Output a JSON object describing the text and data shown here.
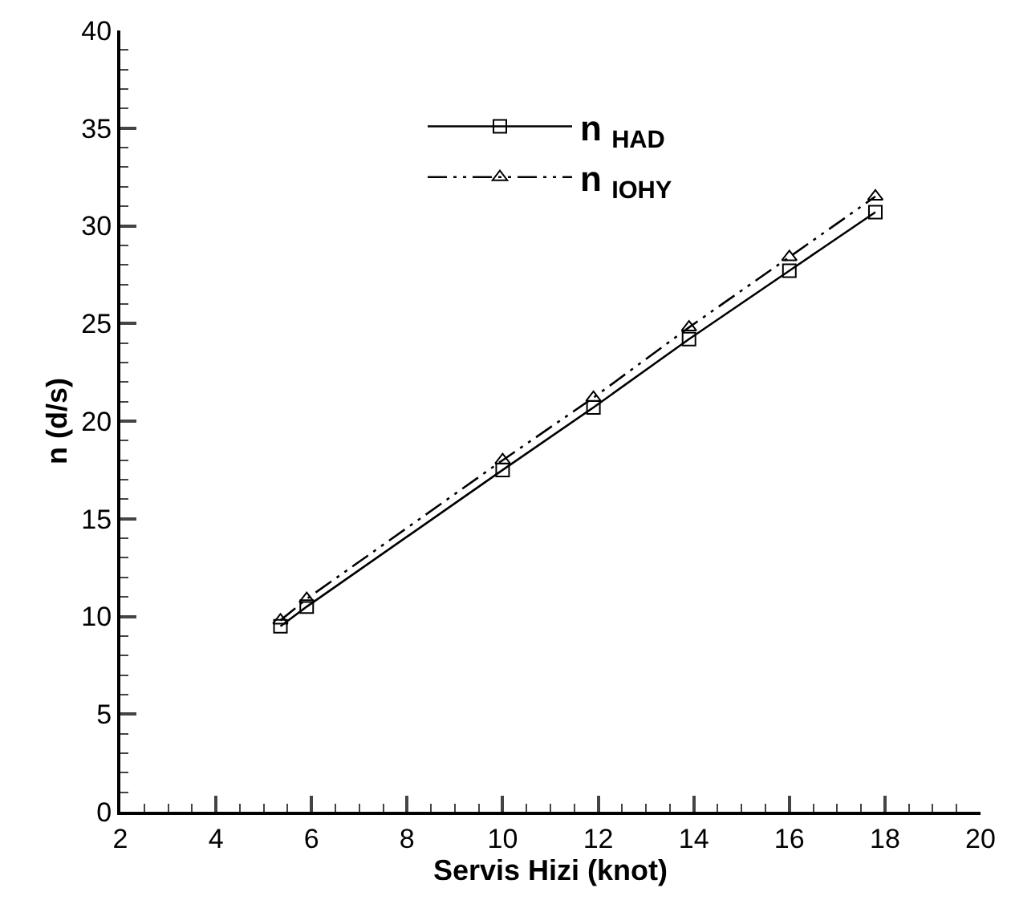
{
  "chart_data": {
    "type": "line",
    "xlabel": "Servis Hizi (knot)",
    "ylabel": "n (d/s)",
    "x": [
      5.35,
      5.9,
      10,
      11.9,
      13.9,
      16,
      17.8
    ],
    "series": [
      {
        "name": "n $_{HAD}$",
        "color": "#000000",
        "marker": "square",
        "line_style": "solid",
        "values": [
          9.5,
          10.5,
          17.5,
          20.7,
          24.2,
          27.7,
          30.7
        ]
      },
      {
        "name": "n $_{IOHY}$",
        "color": "#000000",
        "marker": "triangle",
        "line_style": "dashed",
        "values": [
          9.8,
          10.9,
          18.0,
          21.2,
          24.8,
          28.4,
          31.5
        ]
      }
    ],
    "xlim": [
      2,
      20
    ],
    "xticks": [
      2,
      4,
      6,
      8,
      10,
      12,
      14,
      16,
      18,
      20
    ],
    "ylim": [
      0,
      40
    ],
    "yticks": [
      0,
      5,
      10,
      15,
      20,
      25,
      30,
      35,
      40
    ],
    "grid": false,
    "legend": "top"
  }
}
